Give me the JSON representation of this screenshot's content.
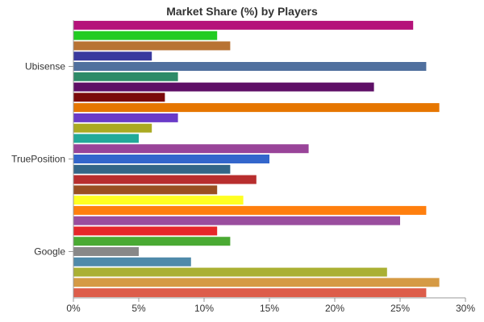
{
  "chart_data": {
    "type": "bar",
    "orientation": "horizontal",
    "title": "Market Share (%) by Players",
    "xlim": [
      0,
      30
    ],
    "x_ticks": [
      "0%",
      "5%",
      "10%",
      "15%",
      "20%",
      "25%",
      "30%"
    ],
    "category_labels": [
      "Ubisense",
      "TruePosition",
      "Google"
    ],
    "bars": [
      {
        "value": 26,
        "color": "#b5127a"
      },
      {
        "value": 11,
        "color": "#22cc22"
      },
      {
        "value": 12,
        "color": "#b87333"
      },
      {
        "value": 6,
        "color": "#3a3a9e"
      },
      {
        "value": 27,
        "color": "#50709e"
      },
      {
        "value": 8,
        "color": "#2e8b68"
      },
      {
        "value": 23,
        "color": "#5e0f66"
      },
      {
        "value": 7,
        "color": "#7a0a0a"
      },
      {
        "value": 28,
        "color": "#e67600"
      },
      {
        "value": 8,
        "color": "#6a3bc8"
      },
      {
        "value": 6,
        "color": "#aaaa22"
      },
      {
        "value": 5,
        "color": "#22aa99"
      },
      {
        "value": 18,
        "color": "#994499"
      },
      {
        "value": 15,
        "color": "#3366cc"
      },
      {
        "value": 12,
        "color": "#336688"
      },
      {
        "value": 14,
        "color": "#b82e2e"
      },
      {
        "value": 11,
        "color": "#994f22"
      },
      {
        "value": 13,
        "color": "#ffff22"
      },
      {
        "value": 27,
        "color": "#ff7f0e"
      },
      {
        "value": 25,
        "color": "#9a4d9e"
      },
      {
        "value": 11,
        "color": "#e6262a"
      },
      {
        "value": 12,
        "color": "#4aaa33"
      },
      {
        "value": 5,
        "color": "#888888"
      },
      {
        "value": 9,
        "color": "#4f8aaa"
      },
      {
        "value": 24,
        "color": "#aab033"
      },
      {
        "value": 28,
        "color": "#d59a44"
      },
      {
        "value": 27,
        "color": "#dd5d4a"
      }
    ]
  }
}
